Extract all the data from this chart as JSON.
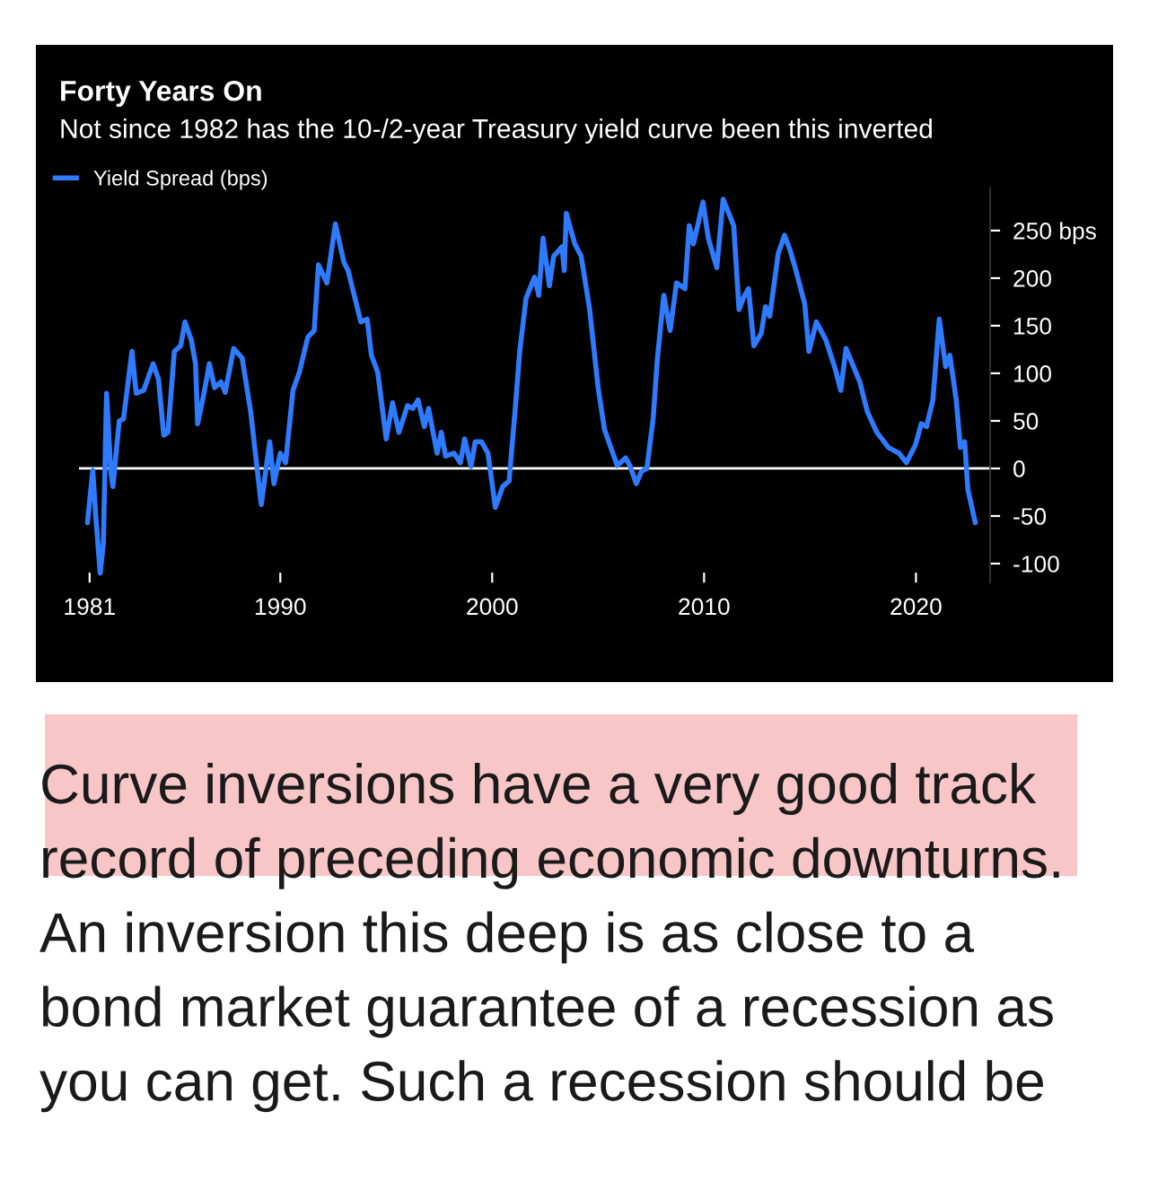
{
  "chart_data": {
    "type": "line",
    "title": "Forty Years On",
    "subtitle": "Not since 1982 has the 10-/2-year Treasury yield curve been this inverted",
    "x": [
      1980.9,
      1981.15,
      1981.3,
      1981.5,
      1981.65,
      1981.8,
      1982.0,
      1982.1,
      1982.4,
      1982.6,
      1983.0,
      1983.2,
      1983.55,
      1984.0,
      1984.25,
      1984.5,
      1984.7,
      1985.0,
      1985.3,
      1985.5,
      1985.8,
      1986.0,
      1986.1,
      1986.4,
      1986.65,
      1986.9,
      1987.2,
      1987.4,
      1987.8,
      1988.2,
      1988.6,
      1989.1,
      1989.5,
      1989.7,
      1990.0,
      1990.25,
      1990.6,
      1990.9,
      1991.3,
      1991.6,
      1991.8,
      1992.2,
      1992.6,
      1993.0,
      1993.2,
      1993.8,
      1994.1,
      1994.3,
      1994.6,
      1995.0,
      1995.3,
      1995.6,
      1996.0,
      1996.25,
      1996.5,
      1996.8,
      1997.0,
      1997.4,
      1997.6,
      1997.8,
      1998.2,
      1998.5,
      1998.7,
      1999.0,
      1999.2,
      1999.5,
      1999.8,
      2000.15,
      2000.5,
      2000.8,
      2001.1,
      2001.3,
      2001.6,
      2002.0,
      2002.2,
      2002.4,
      2002.7,
      2002.9,
      2003.3,
      2003.4,
      2003.5,
      2003.9,
      2004.2,
      2004.6,
      2005.0,
      2005.3,
      2005.9,
      2006.3,
      2006.5,
      2006.8,
      2007.05,
      2007.3,
      2007.6,
      2007.8,
      2008.1,
      2008.4,
      2008.7,
      2009.1,
      2009.3,
      2009.5,
      2009.95,
      2010.2,
      2010.6,
      2010.9,
      2011.4,
      2011.65,
      2011.85,
      2012.1,
      2012.35,
      2012.7,
      2012.9,
      2013.1,
      2013.5,
      2013.8,
      2014.05,
      2014.3,
      2014.75,
      2014.95,
      2015.3,
      2015.75,
      2016.2,
      2016.45,
      2016.7,
      2017.0,
      2017.35,
      2017.7,
      2018.15,
      2018.7,
      2019.2,
      2019.55,
      2019.98,
      2020.25,
      2020.5,
      2020.8,
      2021.1,
      2021.4,
      2021.6,
      2021.9,
      2022.1,
      2022.3,
      2022.45,
      2022.8
    ],
    "series": [
      {
        "name": "Yield Spread (bps)",
        "color": "#2f7bff",
        "values": [
          -57,
          -2,
          -53,
          -110,
          -79,
          79,
          -3,
          -19,
          50,
          52,
          123,
          79,
          82,
          110,
          94,
          35,
          38,
          123,
          129,
          154,
          135,
          110,
          47,
          79,
          110,
          85,
          91,
          80,
          126,
          116,
          60,
          -38,
          28,
          -16,
          16,
          6,
          82,
          101,
          138,
          145,
          214,
          195,
          257,
          217,
          208,
          154,
          157,
          119,
          101,
          31,
          69,
          38,
          66,
          63,
          72,
          44,
          63,
          16,
          38,
          13,
          16,
          6,
          31,
          2,
          28,
          28,
          16,
          -41,
          -19,
          -13,
          66,
          123,
          179,
          201,
          182,
          242,
          192,
          223,
          233,
          208,
          268,
          236,
          223,
          167,
          85,
          41,
          3,
          11,
          3,
          -16,
          -3,
          0,
          53,
          116,
          182,
          145,
          195,
          189,
          255,
          236,
          280,
          242,
          211,
          283,
          255,
          167,
          179,
          189,
          129,
          142,
          170,
          160,
          226,
          245,
          230,
          211,
          173,
          123,
          154,
          135,
          104,
          82,
          126,
          110,
          91,
          60,
          38,
          22,
          16,
          6,
          25,
          47,
          44,
          72,
          157,
          107,
          119,
          72,
          22,
          28,
          -22,
          -57
        ]
      }
    ],
    "xlim": [
      1980.5,
      2023.5
    ],
    "xticks": [
      1981,
      1990,
      2000,
      2010,
      2020
    ],
    "ylim": [
      -120,
      295
    ],
    "yticks": [
      {
        "value": 250,
        "label": "250 bps"
      },
      200,
      150,
      100,
      50,
      0,
      -50,
      -100
    ],
    "ref_lines": [
      {
        "axis": "y",
        "value": 0,
        "color": "#ffffff"
      }
    ],
    "legend": "top left",
    "annotations": [
      "Curve inversions have a very good track record of preceding economic downturns. An inversion this deep is as close to a bond market guarantee of a recession as you can get. Such a recession should be"
    ]
  }
}
